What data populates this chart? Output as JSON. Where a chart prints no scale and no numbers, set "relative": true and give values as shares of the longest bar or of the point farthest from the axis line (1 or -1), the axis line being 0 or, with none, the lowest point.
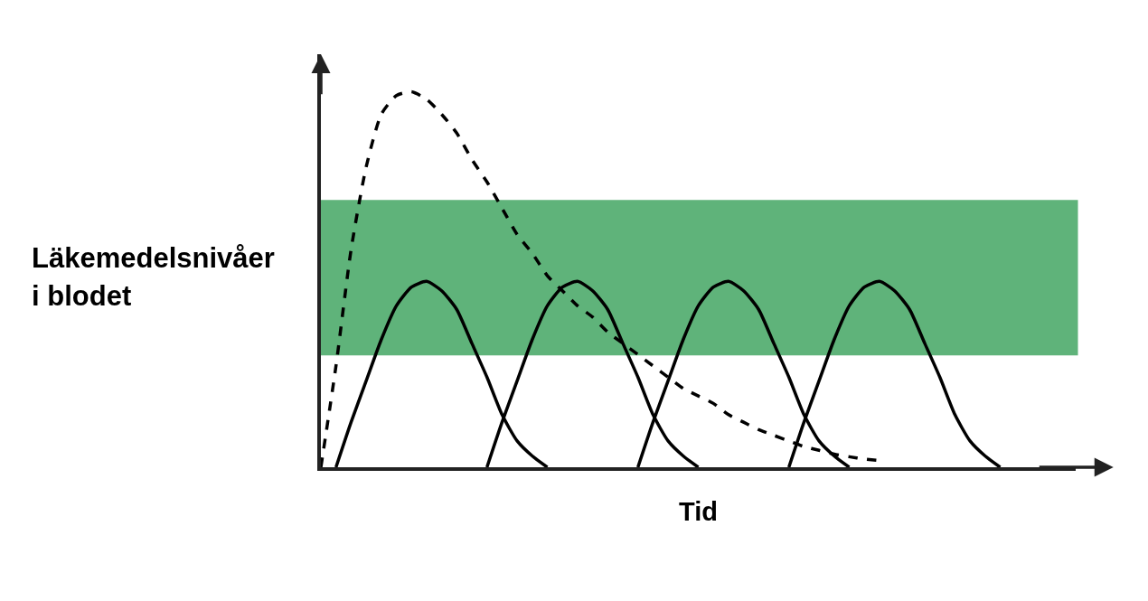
{
  "chart_data": {
    "type": "line",
    "relative": true,
    "xlabel": "Tid",
    "ylabel": "Läkemedelsnivåer i blodet",
    "marker": "none",
    "categories": [
      null,
      null,
      null,
      null,
      null,
      null,
      null,
      null,
      null,
      null,
      null,
      null,
      null,
      null,
      null,
      null,
      null,
      null,
      null,
      null,
      null,
      null,
      null,
      null,
      null,
      null,
      null,
      null,
      null,
      null,
      null,
      null,
      null,
      null,
      null,
      null,
      null,
      null,
      null,
      null,
      null,
      null,
      null,
      null,
      null,
      null,
      null,
      null,
      null,
      null,
      null
    ],
    "bands": [
      {
        "axis": "y",
        "from": 0.298,
        "to": 0.712,
        "color": "#5fb37a"
      }
    ],
    "series": [
      {
        "color": "#000000",
        "line_style": "dashed",
        "values": [
          0,
          0.27,
          0.58,
          0.8,
          0.94,
          0.99,
          1,
          0.98,
          0.94,
          0.89,
          0.82,
          0.76,
          0.69,
          0.62,
          0.57,
          0.51,
          0.47,
          0.43,
          0.4,
          0.36,
          0.33,
          0.3,
          0.27,
          0.24,
          0.21,
          0.19,
          0.17,
          0.14,
          0.12,
          0.1,
          0.085,
          0.07,
          0.055,
          0.045,
          0.035,
          0.028,
          0.022,
          0.018,
          null,
          null,
          null,
          null,
          null,
          null,
          null,
          null,
          null,
          null,
          null,
          null,
          null
        ]
      },
      {
        "color": "#000000",
        "line_style": "solid",
        "values": [
          null,
          0,
          0.12,
          0.23,
          0.34,
          0.43,
          0.48,
          0.495,
          0.47,
          0.42,
          0.33,
          0.24,
          0.14,
          0.07,
          0.03,
          0,
          null,
          null,
          null,
          null,
          null,
          null,
          null,
          null,
          null,
          null,
          null,
          null,
          null,
          null,
          null,
          null,
          null,
          null,
          null,
          null,
          null,
          null,
          null,
          null,
          null,
          null,
          null,
          null,
          null,
          null,
          null,
          null,
          null,
          null,
          null
        ]
      },
      {
        "color": "#000000",
        "line_style": "solid",
        "values": [
          null,
          null,
          null,
          null,
          null,
          null,
          null,
          null,
          null,
          null,
          null,
          0,
          0.12,
          0.23,
          0.34,
          0.43,
          0.48,
          0.495,
          0.47,
          0.42,
          0.33,
          0.24,
          0.14,
          0.07,
          0.03,
          0,
          null,
          null,
          null,
          null,
          null,
          null,
          null,
          null,
          null,
          null,
          null,
          null,
          null,
          null,
          null,
          null,
          null,
          null,
          null,
          null,
          null,
          null,
          null,
          null,
          null
        ]
      },
      {
        "color": "#000000",
        "line_style": "solid",
        "values": [
          null,
          null,
          null,
          null,
          null,
          null,
          null,
          null,
          null,
          null,
          null,
          null,
          null,
          null,
          null,
          null,
          null,
          null,
          null,
          null,
          null,
          0,
          0.12,
          0.23,
          0.34,
          0.43,
          0.48,
          0.495,
          0.47,
          0.42,
          0.33,
          0.24,
          0.14,
          0.07,
          0.03,
          0,
          null,
          null,
          null,
          null,
          null,
          null,
          null,
          null,
          null,
          null,
          null,
          null,
          null,
          null,
          null
        ]
      },
      {
        "color": "#000000",
        "line_style": "solid",
        "values": [
          null,
          null,
          null,
          null,
          null,
          null,
          null,
          null,
          null,
          null,
          null,
          null,
          null,
          null,
          null,
          null,
          null,
          null,
          null,
          null,
          null,
          null,
          null,
          null,
          null,
          null,
          null,
          null,
          null,
          null,
          null,
          0,
          0.12,
          0.23,
          0.34,
          0.43,
          0.48,
          0.495,
          0.47,
          0.42,
          0.33,
          0.24,
          0.14,
          0.07,
          0.03,
          0,
          null,
          null,
          null,
          null,
          null
        ]
      }
    ]
  }
}
